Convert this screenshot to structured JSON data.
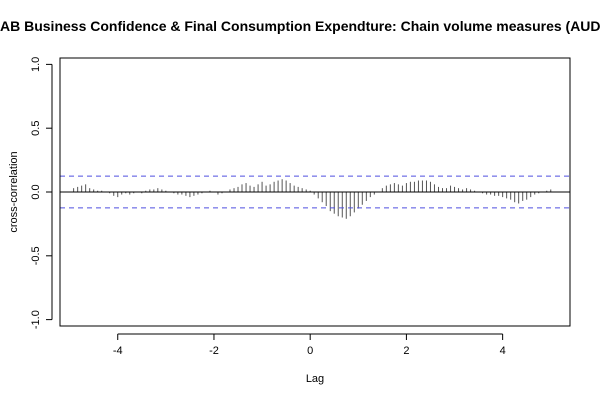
{
  "chart_data": {
    "type": "bar",
    "title": "AB Business Confidence & Final Consumption Expendture: Chain volume measures (AUD)",
    "xlabel": "Lag",
    "ylabel": "cross-correlation",
    "xlim": [
      -5.2,
      5.4
    ],
    "ylim": [
      -1.05,
      1.05
    ],
    "x_ticks": [
      "-4",
      "-2",
      "0",
      "2",
      "4"
    ],
    "y_ticks": [
      "-1.0",
      "-0.5",
      "0.0",
      "0.5",
      "1.0"
    ],
    "confidence_band": 0.124,
    "grid": false,
    "legend": "none",
    "colors": {
      "bars": "#555555",
      "zero_line": "#000000",
      "confidence": "#4f4fe0",
      "frame": "#000000"
    },
    "lags": [
      -4.917,
      -4.833,
      -4.75,
      -4.667,
      -4.583,
      -4.5,
      -4.417,
      -4.333,
      -4.25,
      -4.167,
      -4.083,
      -4.0,
      -3.917,
      -3.833,
      -3.75,
      -3.667,
      -3.583,
      -3.5,
      -3.417,
      -3.333,
      -3.25,
      -3.167,
      -3.083,
      -3.0,
      -2.917,
      -2.833,
      -2.75,
      -2.667,
      -2.583,
      -2.5,
      -2.417,
      -2.333,
      -2.25,
      -2.167,
      -2.083,
      -2.0,
      -1.917,
      -1.833,
      -1.75,
      -1.667,
      -1.583,
      -1.5,
      -1.417,
      -1.333,
      -1.25,
      -1.167,
      -1.083,
      -1.0,
      -0.917,
      -0.833,
      -0.75,
      -0.667,
      -0.583,
      -0.5,
      -0.417,
      -0.333,
      -0.25,
      -0.167,
      -0.083,
      0.0,
      0.083,
      0.167,
      0.25,
      0.333,
      0.417,
      0.5,
      0.583,
      0.667,
      0.75,
      0.833,
      0.917,
      1.0,
      1.083,
      1.167,
      1.25,
      1.333,
      1.417,
      1.5,
      1.583,
      1.667,
      1.75,
      1.833,
      1.917,
      2.0,
      2.083,
      2.167,
      2.25,
      2.333,
      2.417,
      2.5,
      2.583,
      2.667,
      2.75,
      2.833,
      2.917,
      3.0,
      3.083,
      3.167,
      3.25,
      3.333,
      3.417,
      3.5,
      3.583,
      3.667,
      3.75,
      3.833,
      3.917,
      4.0,
      4.083,
      4.167,
      4.25,
      4.333,
      4.417,
      4.5,
      4.583,
      4.667,
      4.75,
      4.833,
      4.917,
      5.0
    ],
    "values": [
      0.03,
      0.04,
      0.05,
      0.06,
      0.03,
      0.02,
      0.01,
      0.01,
      0.0,
      -0.01,
      -0.03,
      -0.04,
      -0.02,
      -0.01,
      -0.02,
      -0.01,
      0.0,
      -0.01,
      0.01,
      0.02,
      0.02,
      0.03,
      0.02,
      0.01,
      0.0,
      -0.01,
      -0.02,
      -0.02,
      -0.03,
      -0.04,
      -0.03,
      -0.02,
      -0.01,
      0.0,
      0.01,
      0.0,
      -0.02,
      -0.01,
      0.0,
      0.02,
      0.03,
      0.04,
      0.06,
      0.07,
      0.05,
      0.04,
      0.06,
      0.08,
      0.05,
      0.06,
      0.08,
      0.09,
      0.1,
      0.09,
      0.07,
      0.05,
      0.04,
      0.03,
      0.02,
      0.01,
      -0.02,
      -0.05,
      -0.08,
      -0.11,
      -0.15,
      -0.17,
      -0.19,
      -0.2,
      -0.21,
      -0.19,
      -0.16,
      -0.13,
      -0.1,
      -0.07,
      -0.04,
      -0.02,
      0.0,
      0.03,
      0.05,
      0.06,
      0.07,
      0.06,
      0.05,
      0.07,
      0.08,
      0.08,
      0.09,
      0.09,
      0.09,
      0.08,
      0.06,
      0.04,
      0.03,
      0.03,
      0.05,
      0.04,
      0.03,
      0.02,
      0.03,
      0.02,
      0.01,
      0.0,
      -0.01,
      -0.02,
      -0.02,
      -0.03,
      -0.03,
      -0.04,
      -0.05,
      -0.06,
      -0.08,
      -0.09,
      -0.07,
      -0.06,
      -0.04,
      -0.02,
      -0.01,
      0.0,
      0.01,
      0.02
    ]
  }
}
